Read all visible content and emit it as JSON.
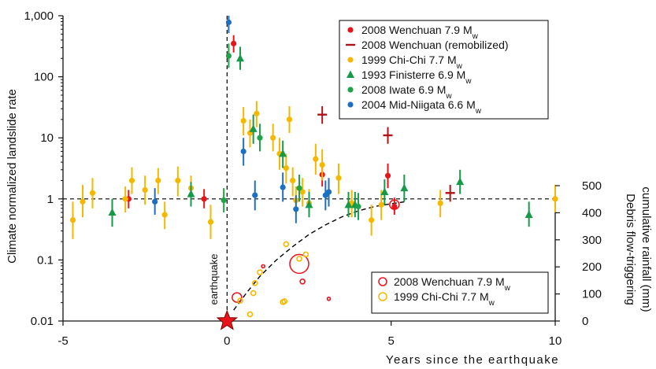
{
  "colors": {
    "wenchuan": "#e8141b",
    "remobilized": "#b01218",
    "chichi": "#f5b800",
    "finisterre": "#169a4a",
    "iwate": "#1fa34a",
    "niigata": "#1f6fc0",
    "star": "#e8141b",
    "axis": "#111111"
  },
  "chart_data": {
    "type": "scatter",
    "x_axis": {
      "label": "Years since the earthquake",
      "range": [
        -5,
        10
      ],
      "ticks": [
        -5,
        0,
        5,
        10
      ],
      "tick_labels": [
        "-5",
        "0",
        "5",
        "10"
      ]
    },
    "y_axis_left": {
      "label": "Climate normalized landslide rate",
      "scale": "log",
      "range": [
        0.01,
        1000
      ],
      "ticks": [
        0.01,
        0.1,
        1,
        10,
        100,
        1000
      ],
      "tick_labels": [
        "0.01",
        "0.1",
        "1",
        "10",
        "100",
        "1,000"
      ]
    },
    "y_axis_right": {
      "label_line1": "Debris flow-triggering",
      "label_line2": "cumulative rainfall (mm)",
      "range": [
        0,
        500
      ],
      "ticks": [
        0,
        100,
        200,
        300,
        400,
        500
      ],
      "tick_labels": [
        "0",
        "100",
        "200",
        "300",
        "400",
        "500"
      ]
    },
    "reference_line_y": 1,
    "earthquake_x": 0,
    "annotation": "earthquake",
    "legend_top": [
      {
        "key": "wenchuan",
        "marker": "circle",
        "label": "2008 Wenchuan 7.9 M",
        "sub": "w"
      },
      {
        "key": "remobilized",
        "marker": "dash",
        "label": "2008 Wenchuan (remobilized)",
        "sub": ""
      },
      {
        "key": "chichi",
        "marker": "circle",
        "label": "1999 Chi-Chi 7.7 M",
        "sub": "w"
      },
      {
        "key": "finisterre",
        "marker": "triangle",
        "label": "1993 Finisterre 6.9 M",
        "sub": "w"
      },
      {
        "key": "iwate",
        "marker": "circle",
        "label": "2008 Iwate 6.9 M",
        "sub": "w"
      },
      {
        "key": "niigata",
        "marker": "circle",
        "label": "2004 Mid-Niigata 6.6 M",
        "sub": "w"
      }
    ],
    "legend_bottom": [
      {
        "key": "wenchuan",
        "marker": "open-circle",
        "label": "2008 Wenchuan 7.9 M",
        "sub": "w"
      },
      {
        "key": "chichi",
        "marker": "open-circle",
        "label": "1999 Chi-Chi 7.7 M",
        "sub": "w"
      }
    ],
    "series": [
      {
        "name": "2008 Wenchuan 7.9 Mw",
        "key": "wenchuan",
        "marker": "circle",
        "points": [
          {
            "x": -3.0,
            "y": 1.0,
            "lo": 0.7,
            "hi": 1.4
          },
          {
            "x": -0.7,
            "y": 1.0,
            "lo": 0.7,
            "hi": 1.45
          },
          {
            "x": 0.2,
            "y": 350,
            "lo": 250,
            "hi": 480
          },
          {
            "x": 2.9,
            "y": 2.5,
            "lo": 1.6,
            "hi": 3.8
          },
          {
            "x": 4.9,
            "y": 2.4,
            "lo": 1.5,
            "hi": 3.8
          },
          {
            "x": 5.1,
            "y": 0.75,
            "lo": 0.55,
            "hi": 1.05
          }
        ]
      },
      {
        "name": "2008 Wenchuan (remobilized)",
        "key": "remobilized",
        "marker": "dash",
        "points": [
          {
            "x": 2.9,
            "y": 24,
            "lo": 17,
            "hi": 33
          },
          {
            "x": 4.9,
            "y": 11,
            "lo": 8,
            "hi": 15
          },
          {
            "x": 6.8,
            "y": 1.25,
            "lo": 0.9,
            "hi": 1.7
          }
        ]
      },
      {
        "name": "1999 Chi-Chi 7.7 Mw",
        "key": "chichi",
        "marker": "circle",
        "points": [
          {
            "x": -4.7,
            "y": 0.45,
            "lo": 0.22,
            "hi": 0.9
          },
          {
            "x": -4.4,
            "y": 0.9,
            "lo": 0.5,
            "hi": 1.7
          },
          {
            "x": -4.1,
            "y": 1.25,
            "lo": 0.7,
            "hi": 2.2
          },
          {
            "x": -3.1,
            "y": 1.0,
            "lo": 0.6,
            "hi": 1.6
          },
          {
            "x": -2.9,
            "y": 2.0,
            "lo": 1.2,
            "hi": 3.3
          },
          {
            "x": -2.5,
            "y": 1.4,
            "lo": 0.8,
            "hi": 2.4
          },
          {
            "x": -2.1,
            "y": 2.0,
            "lo": 1.2,
            "hi": 3.2
          },
          {
            "x": -1.9,
            "y": 0.55,
            "lo": 0.32,
            "hi": 0.9
          },
          {
            "x": -1.5,
            "y": 2.0,
            "lo": 1.1,
            "hi": 3.4
          },
          {
            "x": -1.1,
            "y": 1.5,
            "lo": 0.9,
            "hi": 2.4
          },
          {
            "x": -0.5,
            "y": 0.42,
            "lo": 0.22,
            "hi": 0.8
          },
          {
            "x": 0.5,
            "y": 19,
            "lo": 11,
            "hi": 32
          },
          {
            "x": 0.7,
            "y": 12,
            "lo": 7,
            "hi": 20
          },
          {
            "x": 0.9,
            "y": 25,
            "lo": 15,
            "hi": 40
          },
          {
            "x": 1.4,
            "y": 10,
            "lo": 6,
            "hi": 17
          },
          {
            "x": 1.6,
            "y": 5.5,
            "lo": 3,
            "hi": 10
          },
          {
            "x": 1.8,
            "y": 3.2,
            "lo": 1.8,
            "hi": 5.5
          },
          {
            "x": 1.9,
            "y": 20,
            "lo": 12,
            "hi": 33
          },
          {
            "x": 2.0,
            "y": 2.0,
            "lo": 1.1,
            "hi": 3.3
          },
          {
            "x": 2.1,
            "y": 0.95,
            "lo": 0.55,
            "hi": 1.6
          },
          {
            "x": 2.3,
            "y": 1.3,
            "lo": 0.75,
            "hi": 2.2
          },
          {
            "x": 2.5,
            "y": 0.85,
            "lo": 0.5,
            "hi": 1.45
          },
          {
            "x": 2.7,
            "y": 4.5,
            "lo": 2.5,
            "hi": 8
          },
          {
            "x": 2.9,
            "y": 3.6,
            "lo": 2.0,
            "hi": 6.5
          },
          {
            "x": 3.4,
            "y": 2.2,
            "lo": 1.2,
            "hi": 3.8
          },
          {
            "x": 3.8,
            "y": 0.85,
            "lo": 0.5,
            "hi": 1.4
          },
          {
            "x": 4.4,
            "y": 0.45,
            "lo": 0.25,
            "hi": 0.8
          },
          {
            "x": 4.7,
            "y": 0.8,
            "lo": 0.45,
            "hi": 1.4
          },
          {
            "x": 6.5,
            "y": 0.85,
            "lo": 0.5,
            "hi": 1.4
          },
          {
            "x": 10.0,
            "y": 1.0,
            "lo": 0.6,
            "hi": 1.7
          }
        ]
      },
      {
        "name": "1993 Finisterre 6.9 Mw",
        "key": "finisterre",
        "marker": "triangle",
        "points": [
          {
            "x": -3.5,
            "y": 0.6,
            "lo": 0.35,
            "hi": 1.0
          },
          {
            "x": -1.1,
            "y": 1.2,
            "lo": 0.75,
            "hi": 1.9
          },
          {
            "x": 0.4,
            "y": 200,
            "lo": 130,
            "hi": 310
          },
          {
            "x": 0.8,
            "y": 14,
            "lo": 8,
            "hi": 24
          },
          {
            "x": 1.7,
            "y": 5.5,
            "lo": 3.2,
            "hi": 9
          },
          {
            "x": 2.5,
            "y": 0.8,
            "lo": 0.5,
            "hi": 1.3
          },
          {
            "x": 3.7,
            "y": 0.8,
            "lo": 0.5,
            "hi": 1.3
          },
          {
            "x": 3.9,
            "y": 0.8,
            "lo": 0.5,
            "hi": 1.3
          },
          {
            "x": 4.8,
            "y": 1.3,
            "lo": 0.8,
            "hi": 2.1
          },
          {
            "x": 5.4,
            "y": 1.5,
            "lo": 0.9,
            "hi": 2.5
          },
          {
            "x": 7.1,
            "y": 1.9,
            "lo": 1.2,
            "hi": 3.0
          },
          {
            "x": 9.2,
            "y": 0.55,
            "lo": 0.35,
            "hi": 0.9
          }
        ]
      },
      {
        "name": "2008 Iwate 6.9 Mw",
        "key": "iwate",
        "marker": "circle",
        "points": [
          {
            "x": -0.1,
            "y": 0.95,
            "lo": 0.6,
            "hi": 1.5
          },
          {
            "x": 0.05,
            "y": 220,
            "lo": 140,
            "hi": 350
          },
          {
            "x": 1.0,
            "y": 10,
            "lo": 6,
            "hi": 17
          },
          {
            "x": 2.2,
            "y": 1.5,
            "lo": 0.9,
            "hi": 2.5
          },
          {
            "x": 4.0,
            "y": 0.75,
            "lo": 0.45,
            "hi": 1.25
          }
        ]
      },
      {
        "name": "2004 Mid-Niigata 6.6 Mw",
        "key": "niigata",
        "marker": "circle",
        "points": [
          {
            "x": -2.2,
            "y": 0.9,
            "lo": 0.55,
            "hi": 1.5
          },
          {
            "x": 0.05,
            "y": 780,
            "lo": 520,
            "hi": 1000
          },
          {
            "x": 0.5,
            "y": 6,
            "lo": 3.5,
            "hi": 10
          },
          {
            "x": 0.85,
            "y": 1.15,
            "lo": 0.65,
            "hi": 2.0
          },
          {
            "x": 1.7,
            "y": 1.55,
            "lo": 0.9,
            "hi": 2.7
          },
          {
            "x": 2.1,
            "y": 0.68,
            "lo": 0.4,
            "hi": 1.15
          },
          {
            "x": 3.0,
            "y": 1.15,
            "lo": 0.65,
            "hi": 2.0
          },
          {
            "x": 3.1,
            "y": 1.3,
            "lo": 0.75,
            "hi": 2.2
          }
        ]
      }
    ],
    "rainfall_series": [
      {
        "name": "2008 Wenchuan 7.9 Mw",
        "key": "wenchuan",
        "points": [
          {
            "x": 0.3,
            "y": 87,
            "size": 6
          },
          {
            "x": 1.1,
            "y": 202,
            "size": 2
          },
          {
            "x": 2.2,
            "y": 211,
            "size": 12
          },
          {
            "x": 2.3,
            "y": 146,
            "size": 3
          },
          {
            "x": 3.1,
            "y": 82,
            "size": 2
          },
          {
            "x": 5.1,
            "y": 430,
            "size": 6
          }
        ]
      },
      {
        "name": "1999 Chi-Chi 7.7 Mw",
        "key": "chichi",
        "points": [
          {
            "x": 0.4,
            "y": 75,
            "size": 3
          },
          {
            "x": 0.7,
            "y": 25,
            "size": 3
          },
          {
            "x": 0.8,
            "y": 103,
            "size": 3
          },
          {
            "x": 0.85,
            "y": 140,
            "size": 3
          },
          {
            "x": 1.0,
            "y": 180,
            "size": 3
          },
          {
            "x": 1.7,
            "y": 70,
            "size": 3
          },
          {
            "x": 1.75,
            "y": 73,
            "size": 3
          },
          {
            "x": 1.8,
            "y": 284,
            "size": 3
          },
          {
            "x": 2.2,
            "y": 230,
            "size": 3
          },
          {
            "x": 2.4,
            "y": 246,
            "size": 3
          }
        ]
      }
    ],
    "trend_curve": {
      "style": "dashed",
      "points": [
        {
          "x": 0.2,
          "y": 40
        },
        {
          "x": 0.6,
          "y": 105
        },
        {
          "x": 1.0,
          "y": 165
        },
        {
          "x": 1.5,
          "y": 225
        },
        {
          "x": 2.0,
          "y": 275
        },
        {
          "x": 2.5,
          "y": 320
        },
        {
          "x": 3.0,
          "y": 355
        },
        {
          "x": 3.5,
          "y": 385
        },
        {
          "x": 4.0,
          "y": 407
        },
        {
          "x": 4.5,
          "y": 423
        },
        {
          "x": 5.0,
          "y": 433
        },
        {
          "x": 5.4,
          "y": 440
        }
      ]
    }
  }
}
